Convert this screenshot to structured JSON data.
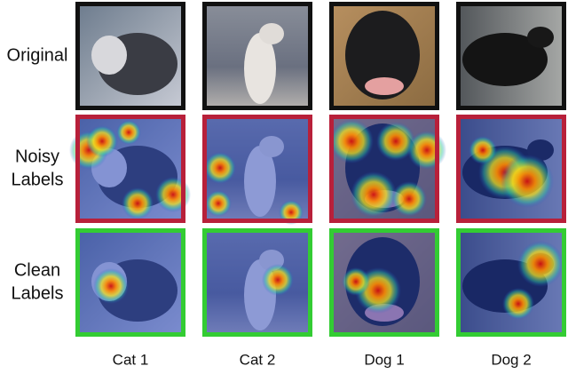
{
  "figure": {
    "row_labels": [
      [
        "Original"
      ],
      [
        "Noisy",
        "Labels"
      ],
      [
        "Clean",
        "Labels"
      ]
    ],
    "column_labels": [
      "Cat 1",
      "Cat 2",
      "Dog 1",
      "Dog 2"
    ]
  }
}
